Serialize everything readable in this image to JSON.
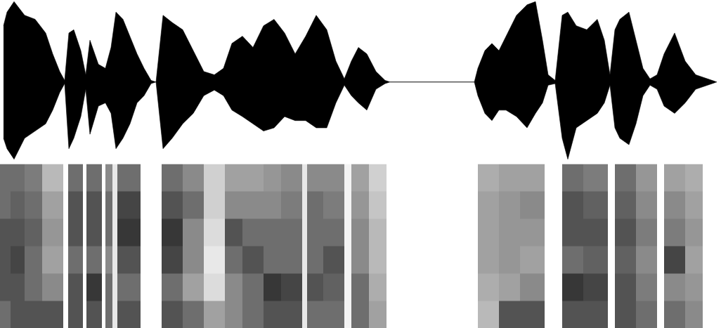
{
  "chart_data": [
    {
      "type": "area",
      "color": "#000000",
      "grid": false,
      "tick_labels": false,
      "xlim": [
        0,
        1026
      ],
      "ylim": [
        -1.02,
        1.02
      ],
      "x": [
        5,
        10,
        20,
        35,
        50,
        65,
        75,
        85,
        92,
        98,
        105,
        115,
        122,
        128,
        140,
        150,
        158,
        165,
        175,
        185,
        195,
        205,
        215,
        222,
        232,
        245,
        260,
        275,
        290,
        305,
        318,
        330,
        345,
        360,
        375,
        390,
        405,
        420,
        435,
        450,
        465,
        478,
        490,
        500,
        510,
        522,
        535,
        548,
        555,
        675,
        680,
        690,
        700,
        710,
        720,
        735,
        750,
        762,
        772,
        780,
        790,
        800,
        808,
        820,
        835,
        850,
        860,
        868,
        875,
        882,
        895,
        905,
        915,
        925,
        935,
        945,
        960,
        975,
        990,
        1010,
        1020
      ],
      "values": [
        0.7,
        0.87,
        1.0,
        0.83,
        0.78,
        0.61,
        0.35,
        0.13,
        0.02,
        0.61,
        0.65,
        0.39,
        0.09,
        0.52,
        0.22,
        0.17,
        0.43,
        0.87,
        0.78,
        0.57,
        0.35,
        0.17,
        0.02,
        0,
        0.83,
        0.74,
        0.65,
        0.39,
        0.13,
        0.09,
        0.17,
        0.48,
        0.57,
        0.43,
        0.7,
        0.78,
        0.61,
        0.35,
        0.57,
        0.83,
        0.65,
        0.26,
        0.04,
        0.26,
        0.43,
        0.35,
        0.13,
        0.02,
        0,
        0,
        0.17,
        0.39,
        0.48,
        0.39,
        0.57,
        0.83,
        0.96,
        1.0,
        0.52,
        0.09,
        0.02,
        0.83,
        0.87,
        0.7,
        0.65,
        0.78,
        0.52,
        0.09,
        0.65,
        0.78,
        0.87,
        0.52,
        0.17,
        0.04,
        0.09,
        0.35,
        0.61,
        0.26,
        0.09,
        0.03,
        0
      ],
      "lower": [
        -0.7,
        -0.83,
        -0.96,
        -0.7,
        -0.61,
        -0.52,
        -0.35,
        -0.13,
        -0.02,
        -0.83,
        -0.7,
        -0.43,
        -0.09,
        -0.65,
        -0.3,
        -0.26,
        -0.39,
        -0.83,
        -0.7,
        -0.52,
        -0.26,
        -0.17,
        -0.02,
        0,
        -0.83,
        -0.7,
        -0.52,
        -0.39,
        -0.17,
        -0.1,
        -0.17,
        -0.35,
        -0.43,
        -0.52,
        -0.61,
        -0.57,
        -0.43,
        -0.48,
        -0.48,
        -0.57,
        -0.57,
        -0.26,
        -0.04,
        -0.17,
        -0.26,
        -0.35,
        -0.09,
        -0.02,
        0,
        0,
        -0.17,
        -0.39,
        -0.48,
        -0.35,
        -0.35,
        -0.43,
        -0.57,
        -0.39,
        -0.26,
        -0.04,
        -0.02,
        -0.7,
        -0.96,
        -0.57,
        -0.48,
        -0.39,
        -0.26,
        -0.04,
        -0.57,
        -0.7,
        -0.78,
        -0.52,
        -0.17,
        -0.04,
        -0.09,
        -0.3,
        -0.39,
        -0.26,
        -0.09,
        -0.03,
        0
      ]
    },
    {
      "type": "heatmap",
      "grid": false,
      "tick_labels": false,
      "xlim": [
        0,
        1026
      ],
      "ylim": [
        0,
        6
      ],
      "zlim": [
        0,
        1
      ],
      "x_edges": [
        0,
        15,
        35,
        60,
        90,
        97,
        118,
        123,
        145,
        150,
        160,
        167,
        200,
        230,
        260,
        290,
        320,
        345,
        375,
        400,
        430,
        437,
        460,
        490,
        500,
        525,
        550,
        680,
        710,
        740,
        775,
        800,
        830,
        865,
        875,
        905,
        935,
        945,
        975,
        1000,
        1026
      ],
      "y_edges": [
        0,
        1,
        2,
        3,
        4,
        5,
        6
      ],
      "cells": [
        [
          0.6,
          0.7,
          0.7,
          0.7,
          0.6,
          0.6
        ],
        [
          0.7,
          0.7,
          0.75,
          0.7,
          0.65,
          0.6
        ],
        [
          0.7,
          0.6,
          0.6,
          0.65,
          0.6,
          0.55
        ],
        [
          0.7,
          0.5,
          0.4,
          0.45,
          0.4,
          0.3
        ],
        [
          0,
          0,
          0,
          0,
          0,
          0
        ],
        [
          0.7,
          0.7,
          0.6,
          0.7,
          0.7,
          0.6
        ],
        [
          0,
          0,
          0,
          0,
          0,
          0
        ],
        [
          0.7,
          0.8,
          0.6,
          0.7,
          0.7,
          0.6
        ],
        [
          0,
          0,
          0,
          0,
          0,
          0
        ],
        [
          0.6,
          0.6,
          0.5,
          0.6,
          0.6,
          0.5
        ],
        [
          0.1,
          0.1,
          0.1,
          0.1,
          0.1,
          0.1
        ],
        [
          0.7,
          0.6,
          0.7,
          0.8,
          0.75,
          0.6
        ],
        [
          0,
          0,
          0,
          0,
          0,
          0
        ],
        [
          0.7,
          0.6,
          0.75,
          0.8,
          0.7,
          0.6
        ],
        [
          0.6,
          0.4,
          0.5,
          0.5,
          0.6,
          0.5
        ],
        [
          0.4,
          0.15,
          0.1,
          0.15,
          0.2,
          0.2
        ],
        [
          0.5,
          0.5,
          0.6,
          0.7,
          0.5,
          0.4
        ],
        [
          0.6,
          0.6,
          0.7,
          0.6,
          0.5,
          0.4
        ],
        [
          0.7,
          0.8,
          0.6,
          0.6,
          0.5,
          0.45
        ],
        [
          0.7,
          0.75,
          0.6,
          0.6,
          0.55,
          0.5
        ],
        [
          0.1,
          0.1,
          0.1,
          0.1,
          0.1,
          0.1
        ],
        [
          0.6,
          0.7,
          0.6,
          0.6,
          0.6,
          0.5
        ],
        [
          0.6,
          0.65,
          0.7,
          0.6,
          0.55,
          0.5
        ],
        [
          0.05,
          0.05,
          0.05,
          0.05,
          0.05,
          0.05
        ],
        [
          0.6,
          0.6,
          0.5,
          0.5,
          0.45,
          0.4
        ],
        [
          0.4,
          0.35,
          0.3,
          0.3,
          0.25,
          0.2
        ],
        [
          0,
          0,
          0,
          0,
          0,
          0
        ],
        [
          0.3,
          0.35,
          0.4,
          0.4,
          0.4,
          0.35
        ],
        [
          0.7,
          0.4,
          0.45,
          0.45,
          0.45,
          0.4
        ],
        [
          0.7,
          0.5,
          0.4,
          0.45,
          0.5,
          0.4
        ],
        [
          0,
          0,
          0,
          0,
          0,
          0
        ],
        [
          0.7,
          0.8,
          0.6,
          0.7,
          0.7,
          0.6
        ],
        [
          0.7,
          0.75,
          0.65,
          0.7,
          0.65,
          0.55
        ],
        [
          0,
          0,
          0,
          0,
          0,
          0
        ],
        [
          0.7,
          0.7,
          0.65,
          0.7,
          0.65,
          0.6
        ],
        [
          0.6,
          0.55,
          0.5,
          0.55,
          0.5,
          0.45
        ],
        [
          0,
          0,
          0,
          0,
          0,
          0
        ],
        [
          0.6,
          0.5,
          0.75,
          0.55,
          0.5,
          0.4
        ],
        [
          0.5,
          0.45,
          0.4,
          0.45,
          0.4,
          0.35
        ],
        [
          0,
          0,
          0,
          0,
          0,
          0
        ]
      ]
    }
  ]
}
